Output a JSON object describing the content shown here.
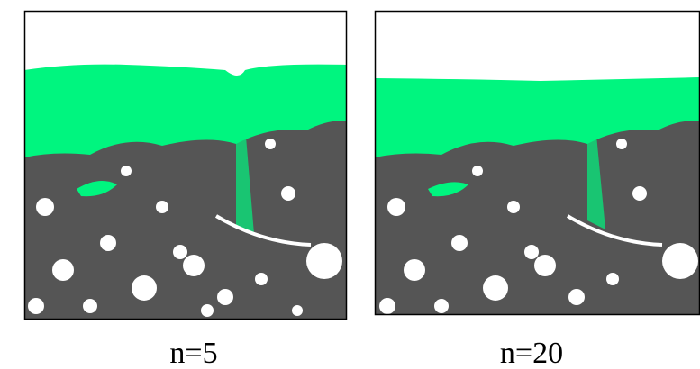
{
  "panels": [
    {
      "caption": "n=5"
    },
    {
      "caption": "n=20"
    }
  ]
}
